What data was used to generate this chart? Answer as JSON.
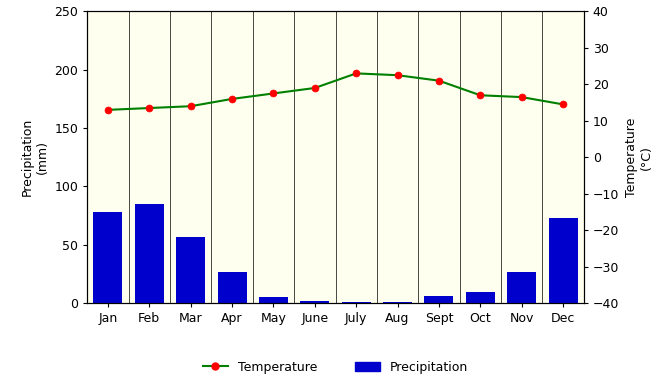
{
  "months": [
    "Jan",
    "Feb",
    "Mar",
    "Apr",
    "May",
    "June",
    "July",
    "Aug",
    "Sept",
    "Oct",
    "Nov",
    "Dec"
  ],
  "precipitation": [
    78,
    85,
    57,
    27,
    5,
    2,
    1,
    1,
    6,
    10,
    27,
    73
  ],
  "temperature": [
    13,
    13.5,
    14,
    16,
    17.5,
    19,
    23,
    22.5,
    21,
    17,
    16.5,
    14.5
  ],
  "bar_color": "#0000cc",
  "line_color": "#008000",
  "marker_color": "#ff0000",
  "plot_bg_color": "#fffff0",
  "fig_bg_color": "#ffffff",
  "left_ylabel_line1": "Precipitation",
  "left_ylabel_line2": "(mm)",
  "right_ylabel_line1": "Temperature",
  "right_ylabel_line2": "(°C)",
  "ylim_left": [
    0,
    250
  ],
  "ylim_right": [
    -40,
    40
  ],
  "yticks_left": [
    0,
    50,
    100,
    150,
    200,
    250
  ],
  "yticks_right": [
    -40,
    -30,
    -20,
    -10,
    0,
    10,
    20,
    30,
    40
  ],
  "legend_temp": "Temperature",
  "legend_precip": "Precipitation",
  "figsize": [
    6.71,
    3.79
  ],
  "dpi": 100
}
